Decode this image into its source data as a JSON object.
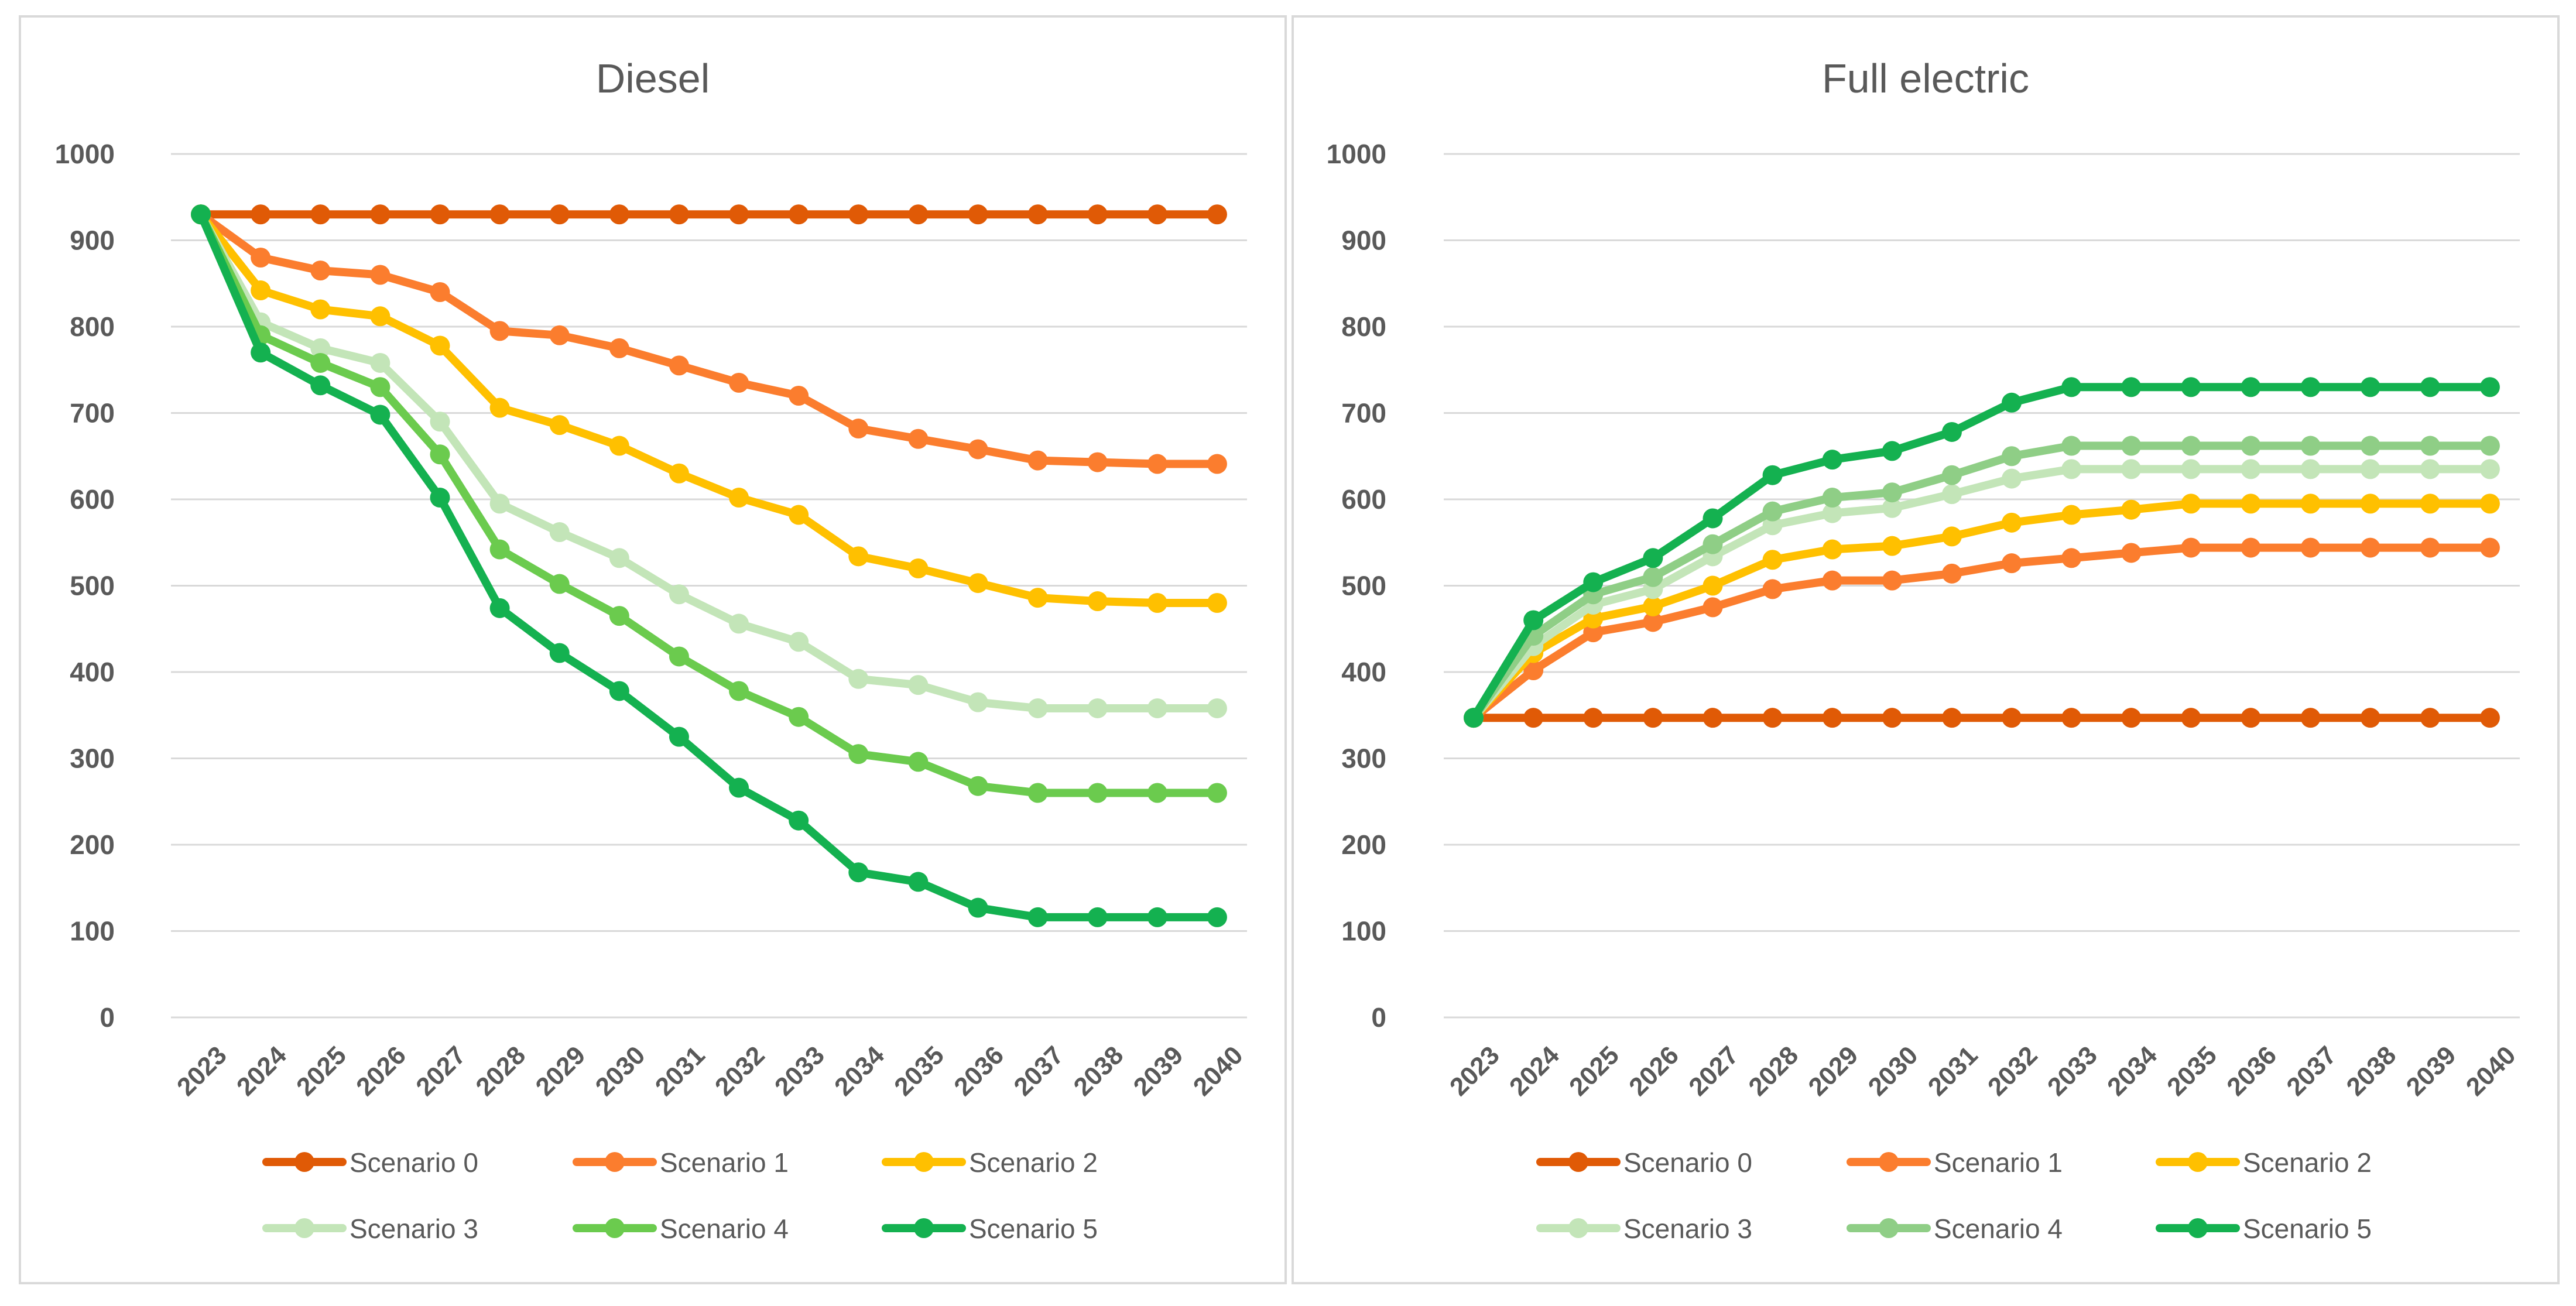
{
  "chart_data": [
    {
      "type": "line",
      "title": "Diesel",
      "ylim": [
        0,
        1000
      ],
      "yticks": [
        0,
        100,
        200,
        300,
        400,
        500,
        600,
        700,
        800,
        900,
        1000
      ],
      "grid": true,
      "legend_position": "bottom",
      "x": [
        "2023",
        "2024",
        "2025",
        "2026",
        "2027",
        "2028",
        "2029",
        "2030",
        "2031",
        "2032",
        "2033",
        "2034",
        "2035",
        "2036",
        "2037",
        "2038",
        "2039",
        "2040"
      ],
      "series": [
        {
          "name": "Scenario 0",
          "color": "#E05A06",
          "values": [
            930,
            930,
            930,
            930,
            930,
            930,
            930,
            930,
            930,
            930,
            930,
            930,
            930,
            930,
            930,
            930,
            930,
            930
          ]
        },
        {
          "name": "Scenario 1",
          "color": "#FB7D2E",
          "values": [
            930,
            880,
            865,
            860,
            840,
            795,
            790,
            775,
            755,
            735,
            720,
            682,
            670,
            658,
            645,
            643,
            641,
            641
          ]
        },
        {
          "name": "Scenario 2",
          "color": "#FFC000",
          "values": [
            930,
            842,
            820,
            812,
            778,
            706,
            686,
            662,
            630,
            602,
            582,
            534,
            520,
            503,
            486,
            482,
            480,
            480
          ]
        },
        {
          "name": "Scenario 3",
          "color": "#C3E5B8",
          "values": [
            930,
            805,
            775,
            758,
            690,
            595,
            562,
            532,
            490,
            456,
            435,
            392,
            385,
            365,
            358,
            358,
            358,
            358
          ]
        },
        {
          "name": "Scenario 4",
          "color": "#6BCB4E",
          "values": [
            930,
            790,
            758,
            730,
            652,
            542,
            502,
            465,
            418,
            378,
            348,
            305,
            296,
            268,
            260,
            260,
            260,
            260
          ]
        },
        {
          "name": "Scenario 5",
          "color": "#14B150",
          "values": [
            930,
            770,
            732,
            698,
            602,
            474,
            422,
            378,
            325,
            266,
            228,
            168,
            157,
            127,
            116,
            116,
            116,
            116
          ]
        }
      ]
    },
    {
      "type": "line",
      "title": "Full electric",
      "ylim": [
        0,
        1000
      ],
      "yticks": [
        0,
        100,
        200,
        300,
        400,
        500,
        600,
        700,
        800,
        900,
        1000
      ],
      "grid": true,
      "legend_position": "bottom",
      "x": [
        "2023",
        "2024",
        "2025",
        "2026",
        "2027",
        "2028",
        "2029",
        "2030",
        "2031",
        "2032",
        "2033",
        "2034",
        "2035",
        "2036",
        "2037",
        "2038",
        "2039",
        "2040"
      ],
      "series": [
        {
          "name": "Scenario 0",
          "color": "#E05A06",
          "values": [
            347,
            347,
            347,
            347,
            347,
            347,
            347,
            347,
            347,
            347,
            347,
            347,
            347,
            347,
            347,
            347,
            347,
            347
          ]
        },
        {
          "name": "Scenario 1",
          "color": "#FB7D2E",
          "values": [
            347,
            402,
            446,
            458,
            475,
            496,
            506,
            506,
            514,
            526,
            532,
            538,
            544,
            544,
            544,
            544,
            544,
            544
          ]
        },
        {
          "name": "Scenario 2",
          "color": "#FFC000",
          "values": [
            347,
            422,
            462,
            476,
            500,
            530,
            542,
            546,
            557,
            573,
            582,
            588,
            595,
            595,
            595,
            595,
            595,
            595
          ]
        },
        {
          "name": "Scenario 3",
          "color": "#C3E5B8",
          "values": [
            347,
            430,
            478,
            496,
            534,
            570,
            584,
            590,
            606,
            624,
            635,
            635,
            635,
            635,
            635,
            635,
            635,
            635
          ]
        },
        {
          "name": "Scenario 4",
          "color": "#8FCE86",
          "values": [
            347,
            442,
            490,
            510,
            548,
            586,
            602,
            608,
            628,
            650,
            662,
            662,
            662,
            662,
            662,
            662,
            662,
            662
          ]
        },
        {
          "name": "Scenario 5",
          "color": "#14B150",
          "values": [
            347,
            460,
            504,
            532,
            578,
            628,
            646,
            656,
            678,
            712,
            730,
            730,
            730,
            730,
            730,
            730,
            730,
            730
          ]
        }
      ]
    }
  ]
}
